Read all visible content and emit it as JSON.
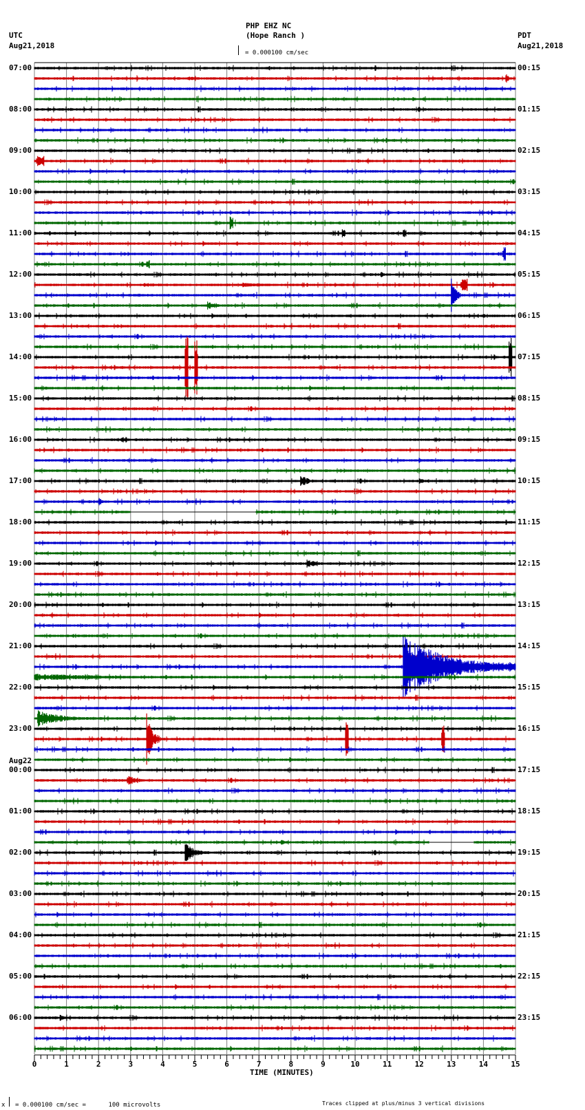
{
  "header": {
    "station": "PHP EHZ NC",
    "location": "(Hope Ranch )",
    "left_tz": "UTC",
    "left_date": "Aug21,2018",
    "right_tz": "PDT",
    "right_date": "Aug21,2018",
    "scale_text": "= 0.000100 cm/sec"
  },
  "footer": {
    "scale_prefix": "x",
    "scale_text": "= 0.000100 cm/sec =      100 microvolts",
    "clip_note": "Traces clipped at plus/minus 3 vertical divisions"
  },
  "colors": {
    "trace_cycle": [
      "#000000",
      "#cc0000",
      "#0000cc",
      "#006600"
    ],
    "grid": "#808080"
  },
  "chart_data": {
    "type": "line",
    "title": "PHP EHZ NC (Hope Ranch ) helicorder",
    "xlabel": "TIME (MINUTES)",
    "ylabel": "",
    "x_ticks": [
      "0",
      "1",
      "2",
      "3",
      "4",
      "5",
      "6",
      "7",
      "8",
      "9",
      "10",
      "11",
      "12",
      "13",
      "14",
      "15"
    ],
    "xlim": [
      0,
      15
    ],
    "grid": true,
    "traces_per_hour": 4,
    "minutes_per_trace": 15,
    "left_labels": [
      "07:00",
      "08:00",
      "09:00",
      "10:00",
      "11:00",
      "12:00",
      "13:00",
      "14:00",
      "15:00",
      "16:00",
      "17:00",
      "18:00",
      "19:00",
      "20:00",
      "21:00",
      "22:00",
      "23:00",
      "00:00",
      "01:00",
      "02:00",
      "03:00",
      "04:00",
      "05:00",
      "06:00"
    ],
    "left_date_change": {
      "index": 17,
      "label": "Aug22"
    },
    "right_labels": [
      "00:15",
      "01:15",
      "02:15",
      "03:15",
      "04:15",
      "05:15",
      "06:15",
      "07:15",
      "08:15",
      "09:15",
      "10:15",
      "11:15",
      "12:15",
      "13:15",
      "14:15",
      "15:15",
      "16:15",
      "17:15",
      "18:15",
      "19:15",
      "20:15",
      "21:15",
      "22:15",
      "23:15"
    ],
    "events": [
      {
        "trace": 1,
        "minute": 14.7,
        "amp": 6,
        "dur": 0.1
      },
      {
        "trace": 1,
        "minute": 4.8,
        "amp": 3,
        "dur": 1.5
      },
      {
        "trace": 5,
        "minute": 0.3,
        "amp": 3,
        "dur": 0.7
      },
      {
        "trace": 8,
        "minute": 13.8,
        "amp": 3,
        "dur": 0.6
      },
      {
        "trace": 9,
        "minute": 0.1,
        "amp": 8,
        "dur": 0.2
      },
      {
        "trace": 15,
        "minute": 6.1,
        "amp": 10,
        "dur": 0.1
      },
      {
        "trace": 16,
        "minute": 9.6,
        "amp": 8,
        "dur": 0.1
      },
      {
        "trace": 16,
        "minute": 11.5,
        "amp": 7,
        "dur": 0.1
      },
      {
        "trace": 18,
        "minute": 14.6,
        "amp": 10,
        "dur": 0.1
      },
      {
        "trace": 19,
        "minute": 3.5,
        "amp": 6,
        "dur": 0.1
      },
      {
        "trace": 20,
        "minute": 10.8,
        "amp": 6,
        "dur": 0.3
      },
      {
        "trace": 21,
        "minute": 3.4,
        "amp": 3,
        "dur": 3.0
      },
      {
        "trace": 21,
        "minute": 6.5,
        "amp": 4,
        "dur": 2.2
      },
      {
        "trace": 21,
        "minute": 13.3,
        "amp": 9,
        "dur": 0.2
      },
      {
        "trace": 22,
        "minute": 13.0,
        "amp": 30,
        "dur": 0.3
      },
      {
        "trace": 23,
        "minute": 5.4,
        "amp": 6,
        "dur": 0.8
      },
      {
        "trace": 24,
        "minute": 14.0,
        "amp": 3,
        "dur": 1.0
      },
      {
        "trace": 29,
        "minute": 4.7,
        "amp": 45,
        "dur": 0.1
      },
      {
        "trace": 29,
        "minute": 5.0,
        "amp": 45,
        "dur": 0.1
      },
      {
        "trace": 28,
        "minute": 14.8,
        "amp": 30,
        "dur": 0.1
      },
      {
        "trace": 36,
        "minute": 2.7,
        "amp": 4,
        "dur": 0.6
      },
      {
        "trace": 40,
        "minute": 8.3,
        "amp": 9,
        "dur": 0.7
      },
      {
        "trace": 40,
        "minute": 12.0,
        "amp": 5,
        "dur": 0.5
      },
      {
        "trace": 42,
        "minute": 2.0,
        "amp": 6,
        "dur": 0.4
      },
      {
        "trace": 48,
        "minute": 8.5,
        "amp": 6,
        "dur": 1.0
      },
      {
        "trace": 58,
        "minute": 11.5,
        "amp": 45,
        "dur": 3.5
      },
      {
        "trace": 59,
        "minute": 0.0,
        "amp": 5,
        "dur": 7.0
      },
      {
        "trace": 63,
        "minute": 0.1,
        "amp": 12,
        "dur": 2.0
      },
      {
        "trace": 65,
        "minute": 3.5,
        "amp": 40,
        "dur": 0.4
      },
      {
        "trace": 65,
        "minute": 9.7,
        "amp": 25,
        "dur": 0.1
      },
      {
        "trace": 65,
        "minute": 12.7,
        "amp": 20,
        "dur": 0.1
      },
      {
        "trace": 69,
        "minute": 2.9,
        "amp": 8,
        "dur": 0.8
      },
      {
        "trace": 76,
        "minute": 4.7,
        "amp": 14,
        "dur": 0.8
      },
      {
        "trace": 75,
        "minute": 7.7,
        "amp": 4,
        "dur": 0.4
      },
      {
        "trace": 92,
        "minute": 0.8,
        "amp": 5,
        "dur": 0.4
      }
    ],
    "gaps": [
      {
        "trace": 43,
        "start": 3.0,
        "end": 6.9
      },
      {
        "trace": 43,
        "start": 7.0,
        "end": 6.95
      },
      {
        "trace": 75,
        "start": 12.3,
        "end": 13.7
      }
    ]
  }
}
